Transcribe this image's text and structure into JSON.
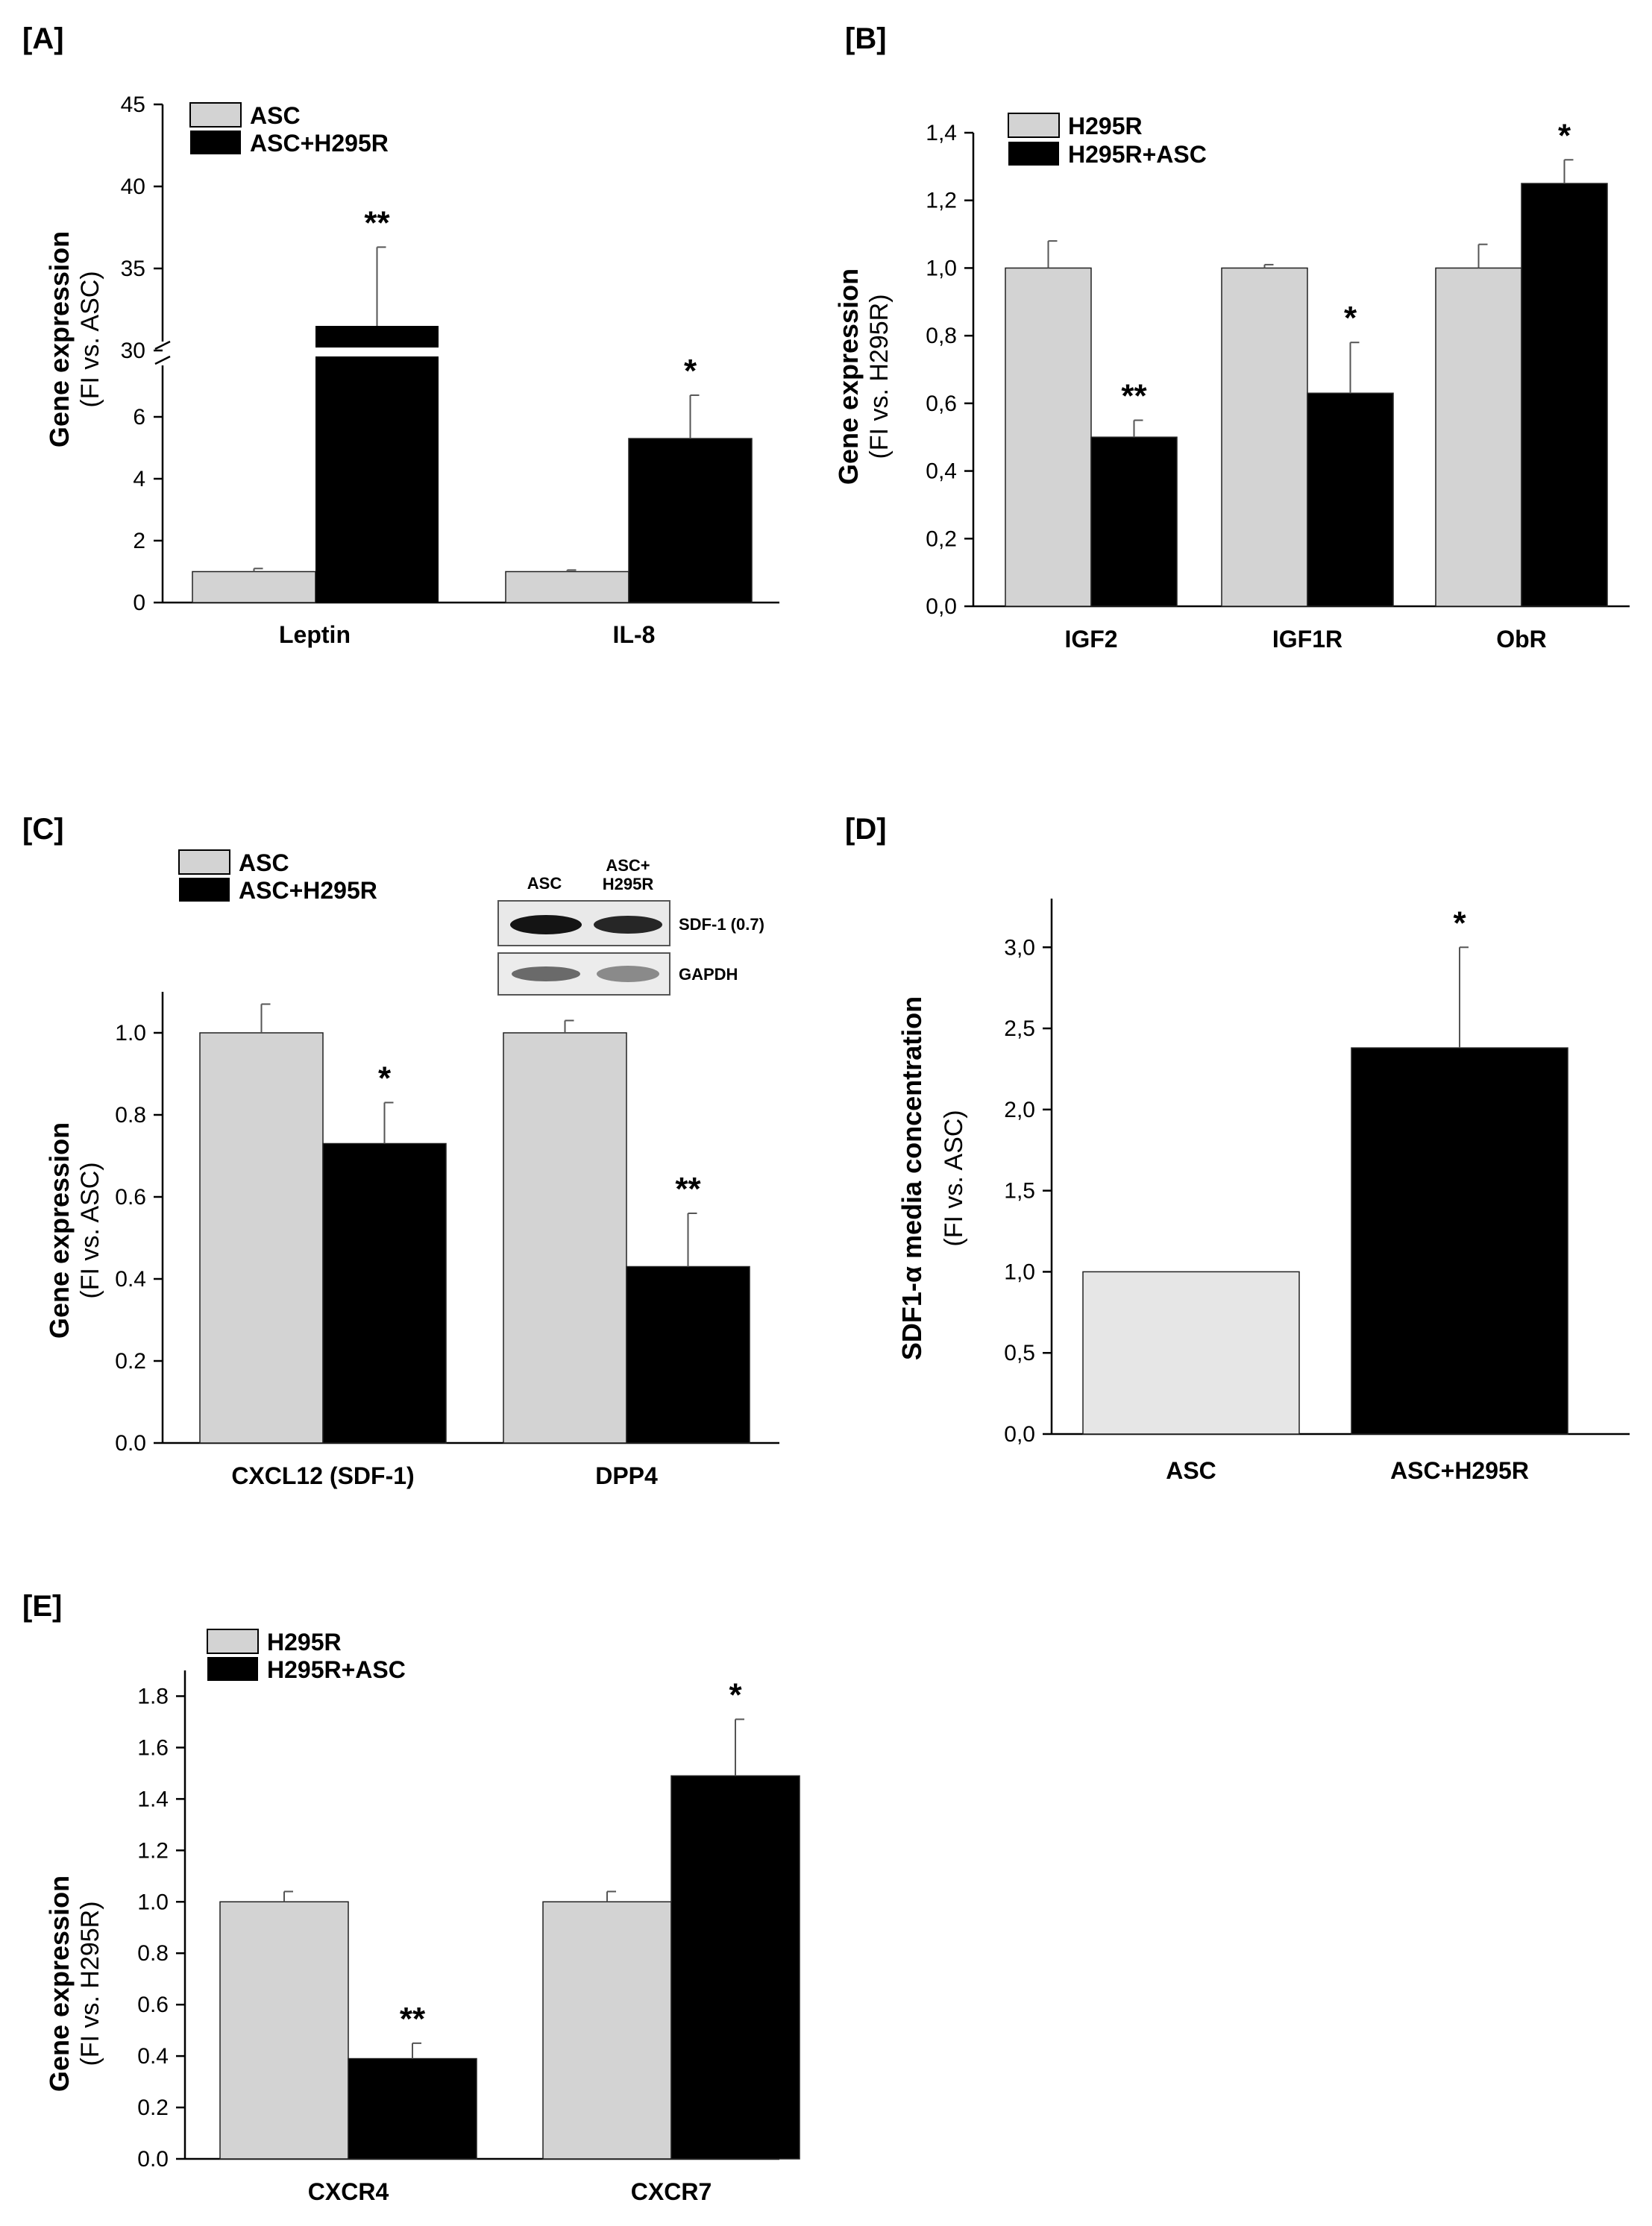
{
  "figure": {
    "colors": {
      "control": "#d3d3d3",
      "coculture": "#000000",
      "axis": "#000000"
    },
    "blot": {
      "col_labels": [
        "ASC",
        "ASC+",
        "H295R"
      ],
      "row_labels": [
        "SDF-1 (0.7)",
        "GAPDH"
      ]
    }
  },
  "chart_data": [
    {
      "id": "A",
      "panel_label": "[A]",
      "type": "bar",
      "categories": [
        "Leptin",
        "IL-8"
      ],
      "series": [
        {
          "name": "ASC",
          "values": [
            1.0,
            1.0
          ],
          "errors": [
            0.1,
            0.05
          ]
        },
        {
          "name": "ASC+H295R",
          "values": [
            31.5,
            5.3
          ],
          "errors": [
            4.8,
            1.4
          ]
        }
      ],
      "significance": [
        [
          "",
          "**"
        ],
        [
          "",
          "*"
        ]
      ],
      "ylabel_bold": "Gene expression",
      "ylabel_sub": "(FI vs. ASC)",
      "yticks_labels": [
        "0",
        "2",
        "4",
        "6",
        "30",
        "35",
        "40",
        "45"
      ],
      "axis_break": {
        "lower": [
          0,
          7
        ],
        "upper": [
          30,
          45
        ]
      }
    },
    {
      "id": "B",
      "panel_label": "[B]",
      "type": "bar",
      "categories": [
        "IGF2",
        "IGF1R",
        "ObR"
      ],
      "series": [
        {
          "name": "H295R",
          "values": [
            1.0,
            1.0,
            1.0
          ],
          "errors": [
            0.08,
            0.01,
            0.07
          ]
        },
        {
          "name": "H295R+ASC",
          "values": [
            0.5,
            0.63,
            1.25
          ],
          "errors": [
            0.05,
            0.15,
            0.07
          ]
        }
      ],
      "significance": [
        [
          "",
          "**"
        ],
        [
          "",
          "*"
        ],
        [
          "",
          "*"
        ]
      ],
      "ylabel_bold": "Gene expression",
      "ylabel_sub": "(FI vs. H295R)",
      "ylim": [
        0,
        1.4
      ],
      "yticks_labels": [
        "0,0",
        "0,2",
        "0,4",
        "0,6",
        "0,8",
        "1,0",
        "1,2",
        "1,4"
      ]
    },
    {
      "id": "C",
      "panel_label": "[C]",
      "type": "bar",
      "categories": [
        "CXCL12 (SDF-1)",
        "DPP4"
      ],
      "series": [
        {
          "name": "ASC",
          "values": [
            1.0,
            1.0
          ],
          "errors": [
            0.07,
            0.03
          ]
        },
        {
          "name": "ASC+H295R",
          "values": [
            0.73,
            0.43
          ],
          "errors": [
            0.1,
            0.13
          ]
        }
      ],
      "significance": [
        [
          "",
          "*"
        ],
        [
          "",
          "**"
        ]
      ],
      "ylabel_bold": "Gene expression",
      "ylabel_sub": "(FI vs. ASC)",
      "ylim": [
        0,
        1.1
      ],
      "yticks_labels": [
        "0.0",
        "0.2",
        "0.4",
        "0.6",
        "0.8",
        "1.0"
      ]
    },
    {
      "id": "D",
      "panel_label": "[D]",
      "type": "bar",
      "categories": [
        "ASC",
        "ASC+H295R"
      ],
      "series": [
        {
          "name": "SDF1-α",
          "values": [
            1.0,
            2.38
          ],
          "errors": [
            0.0,
            0.62
          ]
        }
      ],
      "significance": [
        [
          "",
          "*"
        ]
      ],
      "ylabel_bold": "SDF1-α media concentration",
      "ylabel_sub": "(FI vs. ASC)",
      "ylim": [
        0,
        3.3
      ],
      "yticks_labels": [
        "0,0",
        "0,5",
        "1,0",
        "1,5",
        "2,0",
        "2,5",
        "3,0"
      ]
    },
    {
      "id": "E",
      "panel_label": "[E]",
      "type": "bar",
      "categories": [
        "CXCR4",
        "CXCR7"
      ],
      "series": [
        {
          "name": "H295R",
          "values": [
            1.0,
            1.0
          ],
          "errors": [
            0.04,
            0.04
          ]
        },
        {
          "name": "H295R+ASC",
          "values": [
            0.39,
            1.49
          ],
          "errors": [
            0.06,
            0.22
          ]
        }
      ],
      "significance": [
        [
          "",
          "**"
        ],
        [
          "",
          "*"
        ]
      ],
      "ylabel_bold": "Gene expression",
      "ylabel_sub": "(FI vs. H295R)",
      "ylim": [
        0,
        1.9
      ],
      "yticks_labels": [
        "0.0",
        "0.2",
        "0.4",
        "0.6",
        "0.8",
        "1.0",
        "1.2",
        "1.4",
        "1.6",
        "1.8"
      ]
    }
  ]
}
